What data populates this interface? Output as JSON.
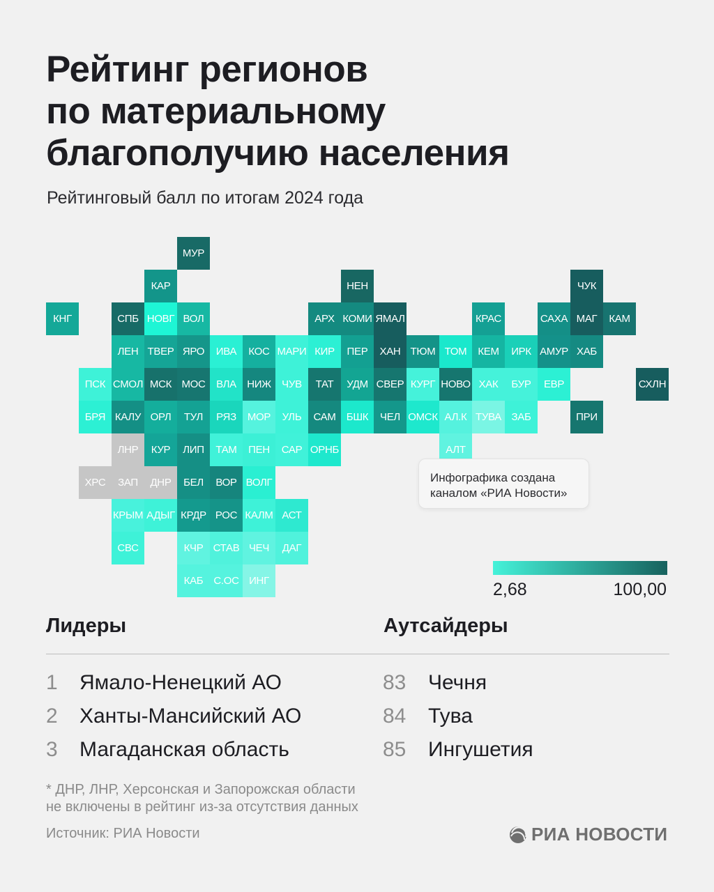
{
  "header": {
    "title_lines": [
      "Рейтинг регионов",
      "по материальному",
      "благополучию населения"
    ],
    "subtitle": "Рейтинговый балл по итогам 2024 года"
  },
  "map": {
    "no_data_color": "#c6c6c6",
    "scale_low_color": "#45f2d9",
    "scale_high_color": "#17625e",
    "tiles": [
      {
        "code": "МУР",
        "color": "#186a66"
      },
      {
        "code": "КАР",
        "color": "#13958a"
      },
      {
        "code": "НЕН",
        "color": "#186762"
      },
      {
        "code": "ЧУК",
        "color": "#175d5e"
      },
      {
        "code": "КНГ",
        "color": "#14a898"
      },
      {
        "code": "СПБ",
        "color": "#176b66"
      },
      {
        "code": "НОВГ",
        "color": "#1ef5d5"
      },
      {
        "code": "ВОЛ",
        "color": "#17b8a3"
      },
      {
        "code": "АРХ",
        "color": "#148a80"
      },
      {
        "code": "КОМИ",
        "color": "#148a80"
      },
      {
        "code": "ЯМАЛ",
        "color": "#175d5e"
      },
      {
        "code": "КРАС",
        "color": "#14a094"
      },
      {
        "code": "САХА",
        "color": "#148f87"
      },
      {
        "code": "МАГ",
        "color": "#175d5e"
      },
      {
        "code": "КАМ",
        "color": "#177470"
      },
      {
        "code": "ЛЕН",
        "color": "#17b8a3"
      },
      {
        "code": "ТВЕР",
        "color": "#15a596"
      },
      {
        "code": "ЯРО",
        "color": "#15968a"
      },
      {
        "code": "ИВА",
        "color": "#2af0d4"
      },
      {
        "code": "КОС",
        "color": "#15b09f"
      },
      {
        "code": "МАРИ",
        "color": "#3ef2d8"
      },
      {
        "code": "КИР",
        "color": "#2cf0d4"
      },
      {
        "code": "ПЕР",
        "color": "#13a092"
      },
      {
        "code": "ХАН",
        "color": "#175d5e"
      },
      {
        "code": "ТЮМ",
        "color": "#149388"
      },
      {
        "code": "ТОМ",
        "color": "#1ae8cc"
      },
      {
        "code": "КЕМ",
        "color": "#15b5a2"
      },
      {
        "code": "ИРК",
        "color": "#1ad0b8"
      },
      {
        "code": "АМУР",
        "color": "#14918a"
      },
      {
        "code": "ХАБ",
        "color": "#158a82"
      },
      {
        "code": "ПСК",
        "color": "#3ef2d8"
      },
      {
        "code": "СМОЛ",
        "color": "#17b8a3"
      },
      {
        "code": "МСК",
        "color": "#17716b"
      },
      {
        "code": "МОС",
        "color": "#177670"
      },
      {
        "code": "ВЛА",
        "color": "#22e3c8"
      },
      {
        "code": "НИЖ",
        "color": "#15877f"
      },
      {
        "code": "ЧУВ",
        "color": "#3ef2d8"
      },
      {
        "code": "ТАТ",
        "color": "#16766f"
      },
      {
        "code": "УДМ",
        "color": "#13a593"
      },
      {
        "code": "СВЕР",
        "color": "#16766f"
      },
      {
        "code": "КУРГ",
        "color": "#45f2da"
      },
      {
        "code": "НОВО",
        "color": "#16766f"
      },
      {
        "code": "ХАК",
        "color": "#45f2da"
      },
      {
        "code": "БУР",
        "color": "#45f2da"
      },
      {
        "code": "ЕВР",
        "color": "#2cf0d4"
      },
      {
        "code": "СХЛН",
        "color": "#175d5e"
      },
      {
        "code": "БРЯ",
        "color": "#2cf0d4"
      },
      {
        "code": "КАЛУ",
        "color": "#148f85"
      },
      {
        "code": "ОРЛ",
        "color": "#14ae9c"
      },
      {
        "code": "ТУЛ",
        "color": "#14a294"
      },
      {
        "code": "РЯЗ",
        "color": "#1ad6bc"
      },
      {
        "code": "МОР",
        "color": "#55f3de"
      },
      {
        "code": "УЛЬ",
        "color": "#3ef2d8"
      },
      {
        "code": "САМ",
        "color": "#15897f"
      },
      {
        "code": "БШК",
        "color": "#1ce8cc"
      },
      {
        "code": "ЧЕЛ",
        "color": "#14978b"
      },
      {
        "code": "ОМСК",
        "color": "#1ee8cd"
      },
      {
        "code": "АЛ.К",
        "color": "#55f2de"
      },
      {
        "code": "ТУВА",
        "color": "#7af5e4"
      },
      {
        "code": "ЗАБ",
        "color": "#3ef2d8"
      },
      {
        "code": "ПРИ",
        "color": "#16766f"
      },
      {
        "code": "ЛНР",
        "color": "#c6c6c6"
      },
      {
        "code": "КУР",
        "color": "#14a598"
      },
      {
        "code": "ЛИП",
        "color": "#158f85"
      },
      {
        "code": "ТАМ",
        "color": "#40f2d9"
      },
      {
        "code": "ПЕН",
        "color": "#3cf0d6"
      },
      {
        "code": "САР",
        "color": "#40f2d9"
      },
      {
        "code": "ОРНБ",
        "color": "#1ee8cd"
      },
      {
        "code": "АЛТ",
        "color": "#60f3e0"
      },
      {
        "code": "ХРС",
        "color": "#c6c6c6"
      },
      {
        "code": "ЗАП",
        "color": "#c6c6c6"
      },
      {
        "code": "ДНР",
        "color": "#c6c6c6"
      },
      {
        "code": "БЕЛ",
        "color": "#158f85"
      },
      {
        "code": "ВОР",
        "color": "#16857d"
      },
      {
        "code": "ВОЛГ",
        "color": "#2aefd2"
      },
      {
        "code": "КРЫМ",
        "color": "#48f2dc"
      },
      {
        "code": "АДЫГ",
        "color": "#3ef2d8"
      },
      {
        "code": "КРДР",
        "color": "#149a8e"
      },
      {
        "code": "РОС",
        "color": "#159489"
      },
      {
        "code": "КАЛМ",
        "color": "#3ef2d8"
      },
      {
        "code": "АСТ",
        "color": "#2ee9d0"
      },
      {
        "code": "СВС",
        "color": "#3ef2d8"
      },
      {
        "code": "КЧР",
        "color": "#60f3e0"
      },
      {
        "code": "СТАВ",
        "color": "#50f2dc"
      },
      {
        "code": "ЧЕЧ",
        "color": "#60f3e0"
      },
      {
        "code": "ДАГ",
        "color": "#50f2dc"
      },
      {
        "code": "КАБ",
        "color": "#55f3de"
      },
      {
        "code": "С.ОС",
        "color": "#55f3de"
      },
      {
        "code": "ИНГ",
        "color": "#85f5e6"
      }
    ],
    "note_lines": [
      "Инфографика создана",
      "каналом «РИА Новости»"
    ],
    "legend": {
      "min_label": "2,68",
      "max_label": "100,00",
      "min": 2.68,
      "max": 100.0
    }
  },
  "leaders": {
    "title": "Лидеры",
    "items": [
      {
        "rank": "1",
        "name": "Ямало-Ненецкий АО"
      },
      {
        "rank": "2",
        "name": "Ханты-Мансийский АО"
      },
      {
        "rank": "3",
        "name": "Магаданская область"
      }
    ]
  },
  "outsiders": {
    "title": "Аутсайдеры",
    "items": [
      {
        "rank": "83",
        "name": "Чечня"
      },
      {
        "rank": "84",
        "name": "Тува"
      },
      {
        "rank": "85",
        "name": "Ингушетия"
      }
    ]
  },
  "footnote_lines": [
    "* ДНР, ЛНР, Херсонская и Запорожская области",
    "не включены в рейтинг из-за отсутствия данных"
  ],
  "source": "Источник: РИА Новости",
  "logo_text": "РИА НОВОСТИ"
}
